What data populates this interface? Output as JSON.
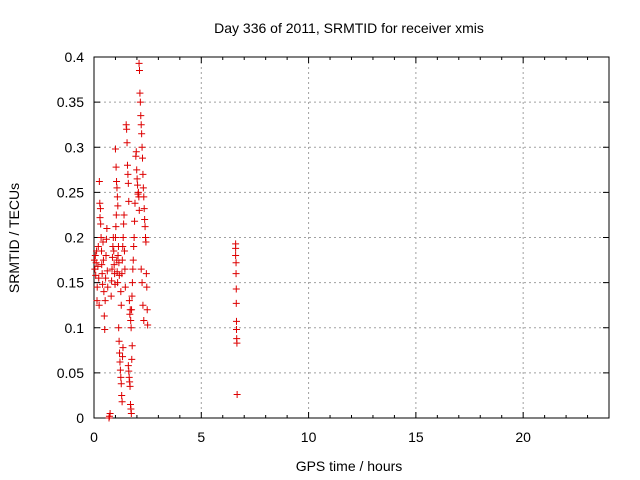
{
  "chart_data": {
    "type": "scatter",
    "title": "Day 336 of 2011, SRMTID for receiver xmis",
    "xlabel": "GPS time / hours",
    "ylabel": "SRMTID / TECUs",
    "xlim": [
      0,
      24
    ],
    "ylim": [
      0,
      0.4
    ],
    "xticks": [
      0,
      5,
      10,
      15,
      20
    ],
    "xtick_labels": [
      "0",
      "5",
      "10",
      "15",
      "20"
    ],
    "yticks": [
      0,
      0.05,
      0.1,
      0.15,
      0.2,
      0.25,
      0.3,
      0.35,
      0.4
    ],
    "ytick_labels": [
      "0",
      "0.05",
      "0.1",
      "0.15",
      "0.2",
      "0.25",
      "0.3",
      "0.35",
      "0.4"
    ],
    "grid": true,
    "marker": "+",
    "marker_color": "#dd0000",
    "series": [
      {
        "name": "SRMTID",
        "points": [
          [
            0.02,
            0.175
          ],
          [
            0.04,
            0.165
          ],
          [
            0.06,
            0.18
          ],
          [
            0.08,
            0.158
          ],
          [
            0.1,
            0.172
          ],
          [
            0.12,
            0.185
          ],
          [
            0.14,
            0.13
          ],
          [
            0.15,
            0.145
          ],
          [
            0.18,
            0.168
          ],
          [
            0.2,
            0.19
          ],
          [
            0.22,
            0.155
          ],
          [
            0.24,
            0.125
          ],
          [
            0.25,
            0.262
          ],
          [
            0.27,
            0.238
          ],
          [
            0.28,
            0.222
          ],
          [
            0.3,
            0.232
          ],
          [
            0.31,
            0.215
          ],
          [
            0.33,
            0.2
          ],
          [
            0.35,
            0.185
          ],
          [
            0.36,
            0.17
          ],
          [
            0.38,
            0.16
          ],
          [
            0.4,
            0.148
          ],
          [
            0.42,
            0.195
          ],
          [
            0.44,
            0.175
          ],
          [
            0.46,
            0.14
          ],
          [
            0.48,
            0.113
          ],
          [
            0.5,
            0.098
          ],
          [
            0.52,
            0.13
          ],
          [
            0.54,
            0.155
          ],
          [
            0.56,
            0.18
          ],
          [
            0.58,
            0.198
          ],
          [
            0.6,
            0.21
          ],
          [
            0.62,
            0.163
          ],
          [
            0.64,
            0.145
          ],
          [
            0.7,
            0.0
          ],
          [
            0.72,
            0.002
          ],
          [
            0.75,
            0.005
          ],
          [
            0.8,
            0.135
          ],
          [
            0.82,
            0.152
          ],
          [
            0.84,
            0.165
          ],
          [
            0.86,
            0.178
          ],
          [
            0.88,
            0.19
          ],
          [
            0.9,
            0.2
          ],
          [
            0.92,
            0.185
          ],
          [
            0.94,
            0.17
          ],
          [
            0.96,
            0.16
          ],
          [
            0.98,
            0.148
          ],
          [
            1.0,
            0.2
          ],
          [
            1.02,
            0.212
          ],
          [
            1.04,
            0.225
          ],
          [
            1.06,
            0.175
          ],
          [
            1.08,
            0.162
          ],
          [
            1.1,
            0.15
          ],
          [
            1.12,
            0.18
          ],
          [
            1.14,
            0.19
          ],
          [
            1.16,
            0.172
          ],
          [
            1.18,
            0.158
          ],
          [
            1.0,
            0.298
          ],
          [
            1.03,
            0.278
          ],
          [
            1.05,
            0.262
          ],
          [
            1.07,
            0.255
          ],
          [
            1.09,
            0.245
          ],
          [
            1.11,
            0.235
          ],
          [
            1.15,
            0.1
          ],
          [
            1.17,
            0.085
          ],
          [
            1.19,
            0.072
          ],
          [
            1.21,
            0.062
          ],
          [
            1.23,
            0.053
          ],
          [
            1.25,
            0.045
          ],
          [
            1.27,
            0.038
          ],
          [
            1.29,
            0.025
          ],
          [
            1.31,
            0.018
          ],
          [
            1.33,
            0.068
          ],
          [
            1.35,
            0.078
          ],
          [
            1.25,
            0.14
          ],
          [
            1.27,
            0.125
          ],
          [
            1.3,
            0.16
          ],
          [
            1.32,
            0.175
          ],
          [
            1.34,
            0.19
          ],
          [
            1.36,
            0.2
          ],
          [
            1.38,
            0.215
          ],
          [
            1.4,
            0.225
          ],
          [
            1.42,
            0.185
          ],
          [
            1.44,
            0.165
          ],
          [
            1.46,
            0.145
          ],
          [
            1.5,
            0.325
          ],
          [
            1.52,
            0.32
          ],
          [
            1.54,
            0.305
          ],
          [
            1.56,
            0.28
          ],
          [
            1.58,
            0.27
          ],
          [
            1.6,
            0.26
          ],
          [
            1.62,
            0.24
          ],
          [
            1.6,
            0.058
          ],
          [
            1.62,
            0.052
          ],
          [
            1.64,
            0.045
          ],
          [
            1.66,
            0.04
          ],
          [
            1.68,
            0.035
          ],
          [
            1.7,
            0.015
          ],
          [
            1.72,
            0.01
          ],
          [
            1.74,
            0.005
          ],
          [
            1.76,
            0.065
          ],
          [
            1.78,
            0.08
          ],
          [
            1.65,
            0.13
          ],
          [
            1.67,
            0.115
          ],
          [
            1.69,
            0.12
          ],
          [
            1.71,
            0.108
          ],
          [
            1.73,
            0.1
          ],
          [
            1.75,
            0.12
          ],
          [
            1.77,
            0.135
          ],
          [
            1.79,
            0.15
          ],
          [
            1.81,
            0.165
          ],
          [
            1.83,
            0.175
          ],
          [
            1.85,
            0.19
          ],
          [
            1.87,
            0.2
          ],
          [
            1.89,
            0.218
          ],
          [
            1.91,
            0.238
          ],
          [
            1.95,
            0.29
          ],
          [
            1.97,
            0.295
          ],
          [
            1.99,
            0.275
          ],
          [
            2.01,
            0.265
          ],
          [
            2.03,
            0.258
          ],
          [
            2.05,
            0.248
          ],
          [
            2.07,
            0.25
          ],
          [
            2.09,
            0.245
          ],
          [
            2.11,
            0.23
          ],
          [
            2.1,
            0.393
          ],
          [
            2.12,
            0.385
          ],
          [
            2.14,
            0.36
          ],
          [
            2.16,
            0.35
          ],
          [
            2.18,
            0.335
          ],
          [
            2.2,
            0.325
          ],
          [
            2.22,
            0.315
          ],
          [
            2.24,
            0.3
          ],
          [
            2.26,
            0.288
          ],
          [
            2.28,
            0.27
          ],
          [
            2.3,
            0.255
          ],
          [
            2.32,
            0.245
          ],
          [
            2.34,
            0.232
          ],
          [
            2.36,
            0.22
          ],
          [
            2.38,
            0.212
          ],
          [
            2.4,
            0.2
          ],
          [
            2.42,
            0.195
          ],
          [
            2.44,
            0.16
          ],
          [
            2.46,
            0.145
          ],
          [
            2.48,
            0.12
          ],
          [
            2.5,
            0.103
          ],
          [
            2.2,
            0.165
          ],
          [
            2.24,
            0.15
          ],
          [
            2.28,
            0.125
          ],
          [
            2.32,
            0.108
          ],
          [
            6.6,
            0.193
          ],
          [
            6.6,
            0.188
          ],
          [
            6.6,
            0.18
          ],
          [
            6.62,
            0.172
          ],
          [
            6.62,
            0.16
          ],
          [
            6.63,
            0.143
          ],
          [
            6.63,
            0.127
          ],
          [
            6.64,
            0.107
          ],
          [
            6.64,
            0.098
          ],
          [
            6.65,
            0.088
          ],
          [
            6.66,
            0.083
          ],
          [
            6.67,
            0.026
          ]
        ]
      }
    ]
  }
}
